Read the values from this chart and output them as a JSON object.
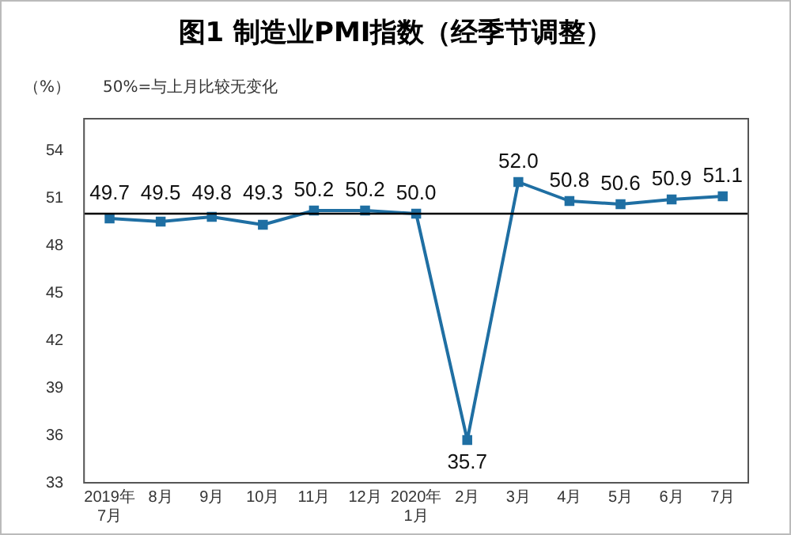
{
  "chart_data": {
    "type": "line",
    "title": "图1  制造业PMI指数（经季节调整）",
    "ylabel": "（%）",
    "annotations": [
      "50%=与上月比较无变化"
    ],
    "categories": [
      "2019年\n7月",
      "8月",
      "9月",
      "10月",
      "11月",
      "12月",
      "2020年\n1月",
      "2月",
      "3月",
      "4月",
      "5月",
      "6月",
      "7月"
    ],
    "series": [
      {
        "color": "#1f6fa3",
        "values": [
          49.7,
          49.5,
          49.8,
          49.3,
          50.2,
          50.2,
          50.0,
          35.7,
          52.0,
          50.8,
          50.6,
          50.9,
          51.1
        ],
        "value_labels": [
          "49.7",
          "49.5",
          "49.8",
          "49.3",
          "50.2",
          "50.2",
          "50.0",
          "35.7",
          "52.0",
          "50.8",
          "50.6",
          "50.9",
          "51.1"
        ]
      }
    ],
    "ylim": [
      33,
      56
    ],
    "yticks": [
      33,
      36,
      39,
      42,
      45,
      48,
      51,
      54
    ],
    "ref_lines": [
      {
        "axis": "y",
        "value": 50,
        "color": "#000000"
      }
    ],
    "grid": false,
    "legend": false,
    "marker": "square",
    "line_style": "solid"
  }
}
